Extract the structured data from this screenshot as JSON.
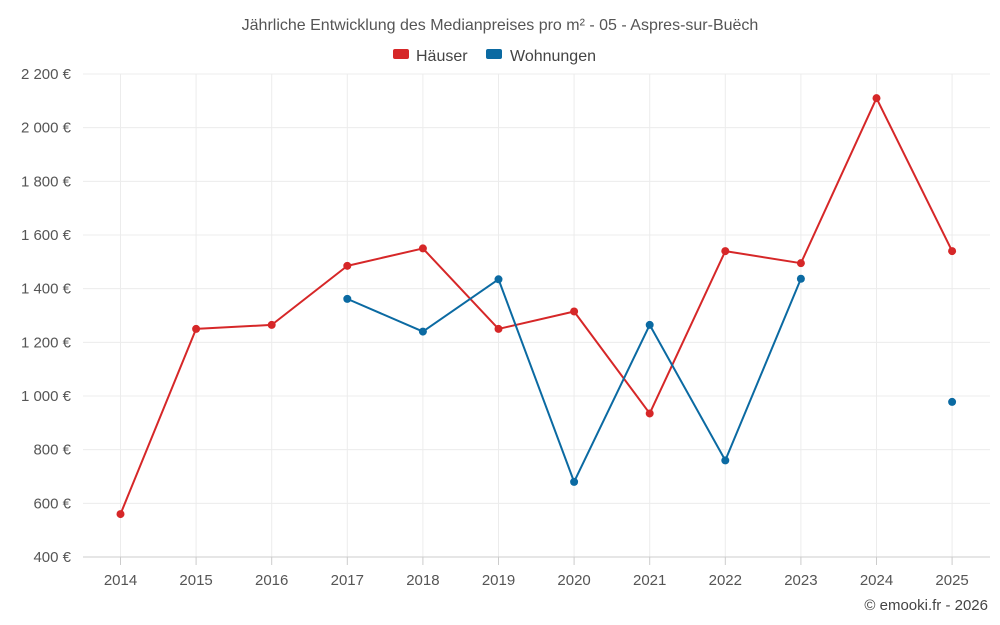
{
  "chart_data": {
    "type": "line",
    "title": "Jährliche Entwicklung des Medianpreises pro m² - 05 - Aspres-sur-Buëch",
    "xlabel": "",
    "ylabel": "",
    "categories": [
      "2014",
      "2015",
      "2016",
      "2017",
      "2018",
      "2019",
      "2020",
      "2021",
      "2022",
      "2023",
      "2024",
      "2025"
    ],
    "ylim": [
      400,
      2200
    ],
    "yticks": [
      400,
      600,
      800,
      1000,
      1200,
      1400,
      1600,
      1800,
      2000,
      2200
    ],
    "ytick_labels": [
      "400 €",
      "600 €",
      "800 €",
      "1 000 €",
      "1 200 €",
      "1 400 €",
      "1 600 €",
      "1 800 €",
      "2 000 €",
      "2 200 €"
    ],
    "grid": true,
    "legend_position": "top-center",
    "series": [
      {
        "name": "Häuser",
        "color": "#d62728",
        "values": [
          560,
          1250,
          1265,
          1485,
          1550,
          1250,
          1315,
          935,
          1540,
          1495,
          2110,
          1540
        ]
      },
      {
        "name": "Wohnungen",
        "color": "#0b6aa2",
        "values": [
          null,
          null,
          null,
          1362,
          1240,
          1435,
          680,
          1265,
          760,
          1437,
          null,
          978
        ]
      }
    ]
  },
  "credit": "© emooki.fr - 2026"
}
